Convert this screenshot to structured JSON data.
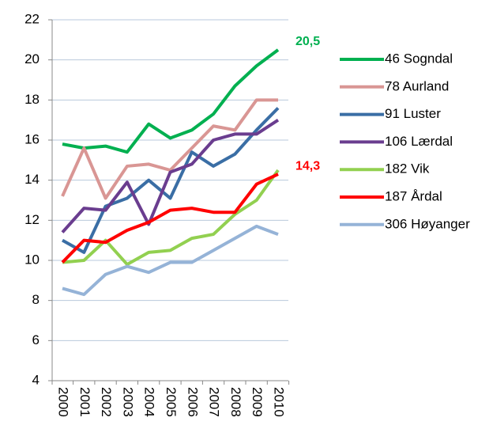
{
  "chart_data": {
    "type": "line",
    "categories": [
      "2000",
      "2001",
      "2002",
      "2003",
      "2004",
      "2005",
      "2006",
      "2007",
      "2008",
      "2009",
      "2010"
    ],
    "ylim": [
      4,
      22
    ],
    "yticks": [
      4,
      6,
      8,
      10,
      12,
      14,
      16,
      18,
      20,
      22
    ],
    "grid": true,
    "legend": "right",
    "series": [
      {
        "name": "46 Sogndal",
        "color": "#00b050",
        "values": [
          15.8,
          15.6,
          15.7,
          15.4,
          16.8,
          16.1,
          16.5,
          17.3,
          18.7,
          19.7,
          20.5
        ],
        "value_labels": [
          null,
          null,
          null,
          null,
          null,
          null,
          null,
          null,
          null,
          null,
          "20,5"
        ]
      },
      {
        "name": "78 Aurland",
        "color": "#d99694",
        "values": [
          13.2,
          15.6,
          13.1,
          14.7,
          14.8,
          14.5,
          15.6,
          16.7,
          16.5,
          18.0,
          18.0
        ]
      },
      {
        "name": "91 Luster",
        "color": "#3a6ea5",
        "values": [
          11.0,
          10.4,
          12.7,
          13.1,
          14.0,
          13.1,
          15.4,
          14.7,
          15.3,
          16.5,
          17.6
        ]
      },
      {
        "name": "106 Lærdal",
        "color": "#6a3d8f",
        "values": [
          11.4,
          12.6,
          12.5,
          13.9,
          11.8,
          14.4,
          14.8,
          16.0,
          16.3,
          16.3,
          17.0
        ]
      },
      {
        "name": "182 Vik",
        "color": "#92d050",
        "values": [
          9.9,
          10.0,
          11.0,
          9.8,
          10.4,
          10.5,
          11.1,
          11.3,
          12.3,
          13.0,
          14.5
        ]
      },
      {
        "name": "187 Årdal",
        "color": "#ff0000",
        "values": [
          9.9,
          11.0,
          10.9,
          11.5,
          11.9,
          12.5,
          12.6,
          12.4,
          12.4,
          13.8,
          14.3
        ],
        "value_labels": [
          null,
          null,
          null,
          null,
          null,
          null,
          null,
          null,
          null,
          null,
          "14,3"
        ]
      },
      {
        "name": "306 Høyanger",
        "color": "#95b3d7",
        "values": [
          8.6,
          8.3,
          9.3,
          9.7,
          9.4,
          9.9,
          9.9,
          10.5,
          11.1,
          11.7,
          11.3
        ]
      }
    ]
  }
}
